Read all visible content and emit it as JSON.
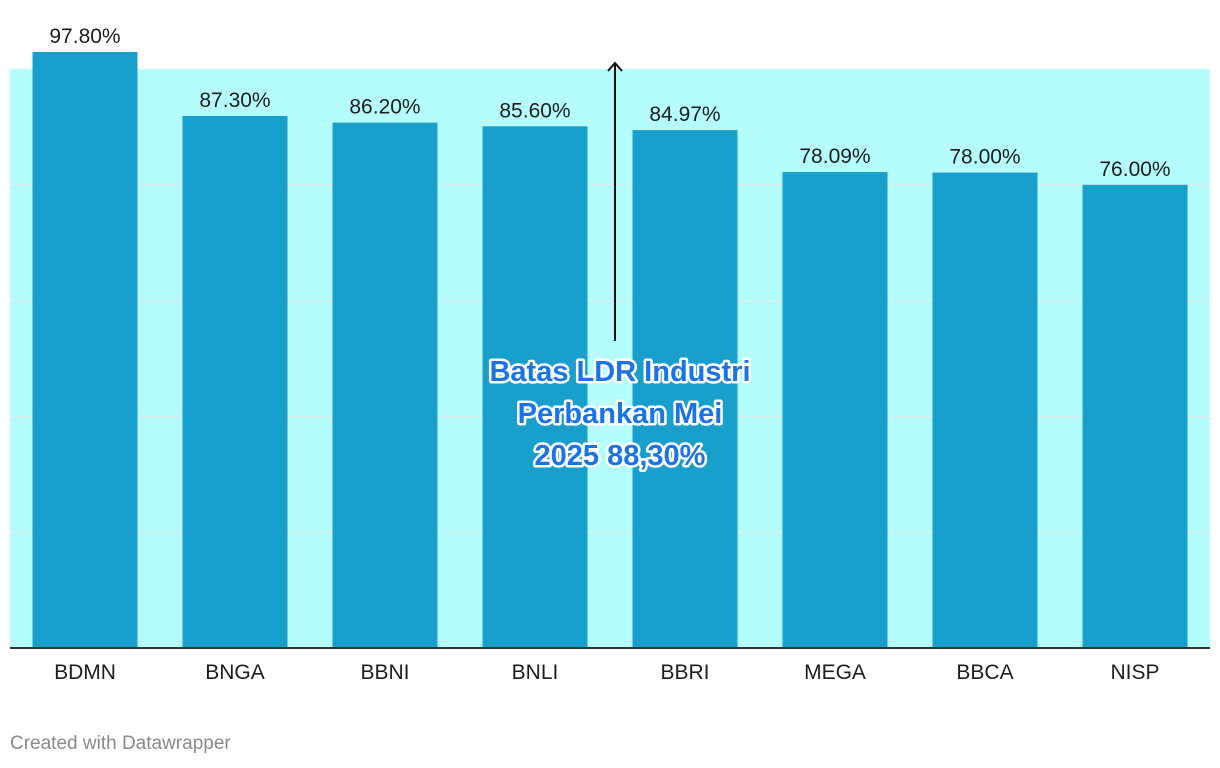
{
  "chart_data": {
    "type": "bar",
    "categories": [
      "BDMN",
      "BNGA",
      "BBNI",
      "BNLI",
      "BBRI",
      "MEGA",
      "BBCA",
      "NISP"
    ],
    "values": [
      97.8,
      87.3,
      86.2,
      85.6,
      84.97,
      78.09,
      78.0,
      76.0
    ],
    "value_labels": [
      "97.80%",
      "87.30%",
      "86.20%",
      "85.60%",
      "84.97%",
      "78.09%",
      "78.00%",
      "76.00%"
    ],
    "title": "",
    "xlabel": "",
    "ylabel": "",
    "ylim": [
      0,
      95
    ],
    "grid": true,
    "band": {
      "from": 0,
      "to": 95
    },
    "annotation": {
      "lines": [
        "Batas LDR Industri",
        "Perbankan Mei",
        "2025 88,30%"
      ],
      "value": 88.3
    },
    "colors": {
      "bar": "#199fcc",
      "band": "#b5fcfc",
      "grid": "#e6e6e6",
      "axis": "#333333",
      "annotation": "#1a73e8"
    }
  },
  "footer": {
    "credit": "Created with Datawrapper"
  }
}
